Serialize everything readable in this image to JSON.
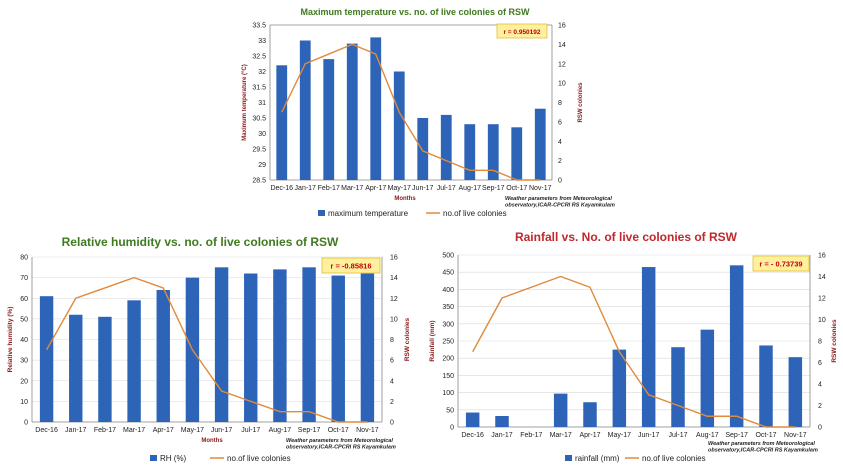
{
  "chart_data": [
    {
      "type": "bar",
      "title": "Maximum temperature vs. no. of live colonies of RSW",
      "xlabel": "Months",
      "ylabel": "Maximum temperature (°C)",
      "y2label": "RSW colonies",
      "categories": [
        "Dec-16",
        "Jan-17",
        "Feb-17",
        "Mar-17",
        "Apr-17",
        "May-17",
        "Jun-17",
        "Jul-17",
        "Aug-17",
        "Sep-17",
        "Oct-17",
        "Nov-17"
      ],
      "ylim": [
        28.5,
        33.5
      ],
      "yticks": [
        "28.5",
        "29",
        "29.5",
        "30",
        "30.5",
        "31",
        "31.5",
        "32",
        "32.5",
        "33",
        "33.5"
      ],
      "y2lim": [
        0,
        16
      ],
      "y2ticks": [
        "0",
        "2",
        "4",
        "6",
        "8",
        "10",
        "12",
        "14",
        "16"
      ],
      "series": [
        {
          "name": "maximum temperature",
          "kind": "bar",
          "axis": "left",
          "values": [
            32.2,
            33.0,
            32.4,
            32.9,
            33.1,
            32.0,
            30.5,
            30.6,
            30.3,
            30.3,
            30.2,
            30.8
          ]
        },
        {
          "name": "no.of live colonies",
          "kind": "line",
          "axis": "right",
          "values": [
            7,
            12,
            13,
            14,
            13,
            7,
            3,
            2,
            1,
            1,
            0,
            0
          ]
        }
      ],
      "annotation": "r = 0.950192",
      "note": [
        "Weather parameters from Meteorological",
        "observatory,ICAR-CPCRI RS Kayamkulam"
      ],
      "grid": false,
      "legend": "bottom"
    },
    {
      "type": "bar",
      "title": "Relative humidity vs. no. of live colonies of RSW",
      "xlabel": "Months",
      "ylabel": "Relative humidity (%)",
      "y2label": "RSW colonies",
      "categories": [
        "Dec-16",
        "Jan-17",
        "Feb-17",
        "Mar-17",
        "Apr-17",
        "May-17",
        "Jun-17",
        "Jul-17",
        "Aug-17",
        "Sep-17",
        "Oct-17",
        "Nov-17"
      ],
      "ylim": [
        0,
        80
      ],
      "yticks": [
        "0",
        "10",
        "20",
        "30",
        "40",
        "50",
        "60",
        "70",
        "80"
      ],
      "y2lim": [
        0,
        16
      ],
      "y2ticks": [
        "0",
        "2",
        "4",
        "6",
        "8",
        "10",
        "12",
        "14",
        "16"
      ],
      "series": [
        {
          "name": "RH (%)",
          "kind": "bar",
          "axis": "left",
          "values": [
            61,
            52,
            51,
            59,
            64,
            70,
            75,
            72,
            74,
            75,
            71,
            72
          ]
        },
        {
          "name": "no.of live colonies",
          "kind": "line",
          "axis": "right",
          "values": [
            7,
            12,
            13,
            14,
            13,
            7,
            3,
            2,
            1,
            1,
            0,
            0
          ]
        }
      ],
      "annotation": "r = -0.85816",
      "note": [
        "Weather parameters from Meteorological",
        "observatory,ICAR-CPCRI RS Kayamkulam"
      ],
      "grid": true,
      "legend": "bottom"
    },
    {
      "type": "bar",
      "title": "Rainfall vs. No. of live colonies of RSW",
      "xlabel": "",
      "ylabel": "Rainfall (mm)",
      "y2label": "RSW colonies",
      "categories": [
        "Dec-16",
        "Jan-17",
        "Feb-17",
        "Mar-17",
        "Apr-17",
        "May-17",
        "Jun-17",
        "Jul-17",
        "Aug-17",
        "Sep-17",
        "Oct-17",
        "Nov-17"
      ],
      "ylim": [
        0,
        500
      ],
      "yticks": [
        "0",
        "50",
        "100",
        "150",
        "200",
        "250",
        "300",
        "350",
        "400",
        "450",
        "500"
      ],
      "y2lim": [
        0,
        16
      ],
      "y2ticks": [
        "0",
        "2",
        "4",
        "6",
        "8",
        "10",
        "12",
        "14",
        "16"
      ],
      "series": [
        {
          "name": "rainfall (mm)",
          "kind": "bar",
          "axis": "left",
          "values": [
            42,
            32,
            0,
            97,
            72,
            225,
            465,
            232,
            283,
            470,
            237,
            203
          ]
        },
        {
          "name": "no.of live colonies",
          "kind": "line",
          "axis": "right",
          "values": [
            7,
            12,
            13,
            14,
            13,
            7,
            3,
            2,
            1,
            1,
            0,
            0
          ]
        }
      ],
      "annotation": "r = - 0.73739",
      "note": [
        "Weather parameters from Meteorological",
        "observatory,ICAR-CPCRI RS Kayamkulam"
      ],
      "grid": true,
      "legend": "bottom"
    }
  ],
  "colors": {
    "bar": "#2e64b8",
    "line": "#e08a3c",
    "title1": "#3e7a1e",
    "title2": "#3e7a1e",
    "title3": "#c0282b",
    "axisTitle": "#8b1a1a",
    "annotationBg": "#fff0a0",
    "annotationText": "#c00000",
    "annotationBorder": "#e0c030"
  }
}
